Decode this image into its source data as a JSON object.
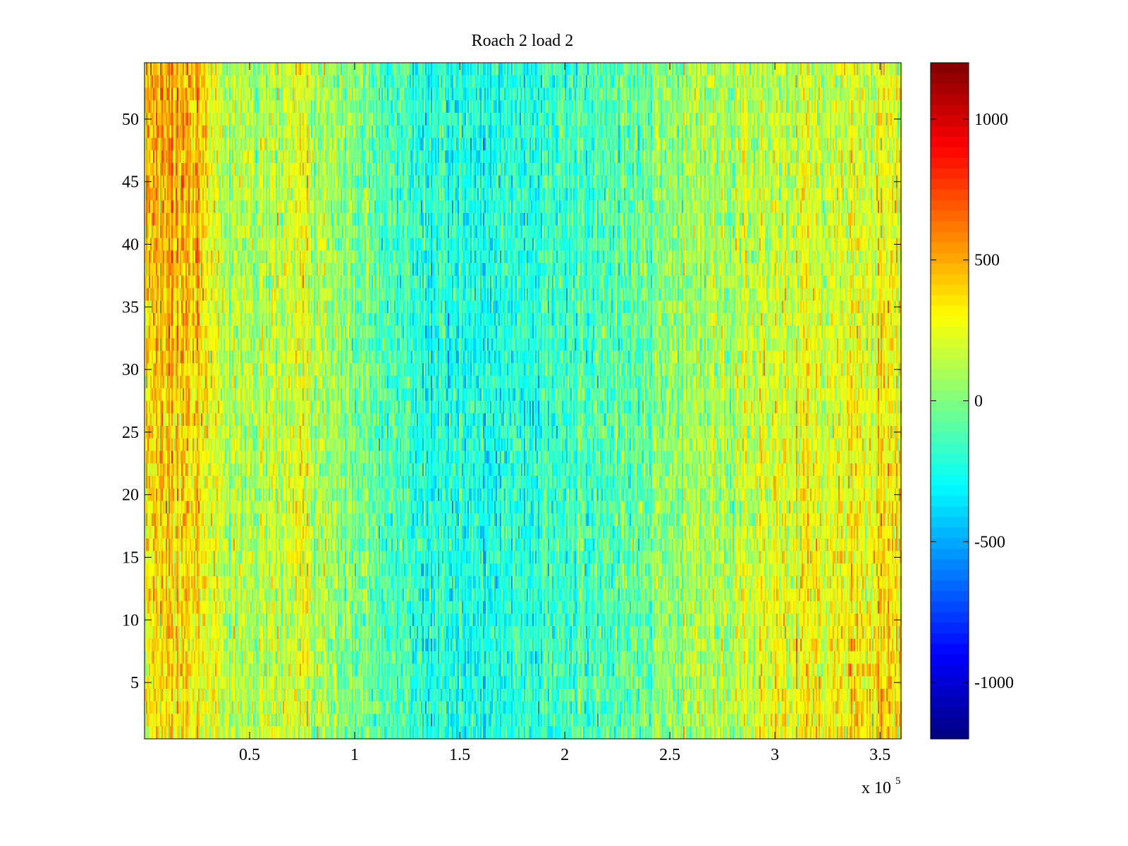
{
  "chart_data": {
    "type": "heatmap",
    "title": "Roach 2 load 2",
    "xlabel": "",
    "ylabel": "",
    "x_range": [
      0,
      360000
    ],
    "y_range": [
      0.5,
      54.5
    ],
    "n_rows": 54,
    "x_ticks": [
      50000,
      100000,
      150000,
      200000,
      250000,
      300000,
      350000
    ],
    "x_tick_labels": [
      "0.5",
      "1",
      "1.5",
      "2",
      "2.5",
      "3",
      "3.5"
    ],
    "x_exponent_label": "x 10",
    "x_exponent_power": "5",
    "y_ticks": [
      5,
      10,
      15,
      20,
      25,
      30,
      35,
      40,
      45,
      50
    ],
    "y_tick_labels": [
      "5",
      "10",
      "15",
      "20",
      "25",
      "30",
      "35",
      "40",
      "45",
      "50"
    ],
    "colorbar": {
      "colormap": "jet",
      "clim": [
        -1200,
        1200
      ],
      "ticks": [
        -1000,
        -500,
        0,
        500,
        1000
      ],
      "tick_labels": [
        "-1000",
        "-500",
        "0",
        "500",
        "1000"
      ]
    },
    "column_profile": {
      "x": [
        0,
        10000,
        20000,
        30000,
        45000,
        60000,
        70000,
        75000,
        80000,
        90000,
        105000,
        120000,
        140000,
        160000,
        180000,
        200000,
        220000,
        240000,
        260000,
        280000,
        300000,
        320000,
        340000,
        360000
      ],
      "mean": [
        350,
        450,
        380,
        250,
        120,
        110,
        180,
        260,
        150,
        0,
        -60,
        -150,
        -250,
        -260,
        -230,
        -180,
        -100,
        -20,
        60,
        130,
        200,
        230,
        260,
        280
      ]
    },
    "row_gradient": {
      "note_values": "upper rows warmer near x<30000, lower rows warmer near x>290000",
      "top_left_boost": 180,
      "bottom_right_boost": 150
    },
    "noise_amplitude": 230,
    "grid": false
  }
}
